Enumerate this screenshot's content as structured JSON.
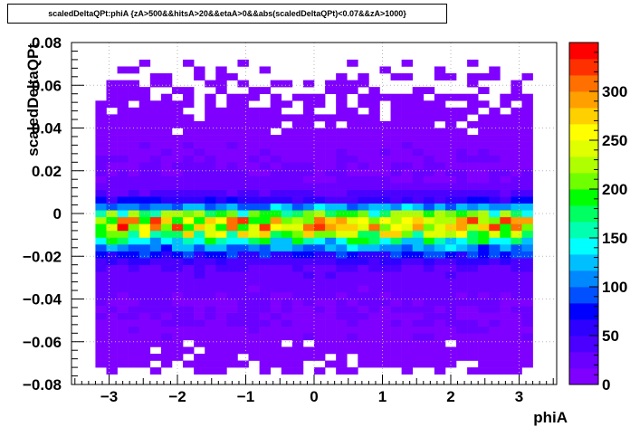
{
  "title": "scaledDeltaQPt:phiA {zA>500&&hitsA>20&&etaA>0&&abs(scaledDeltaQPt)<0.07&&zA>1000}",
  "chart_data": {
    "type": "heatmap",
    "title": "scaledDeltaQPt:phiA {zA>500&&hitsA>20&&etaA>0&&abs(scaledDeltaQPt)<0.07&&zA>1000}",
    "xlabel": "phiA",
    "ylabel": "scaledDeltaQPt",
    "xlim": [
      -3.55,
      3.55
    ],
    "ylim": [
      -0.08,
      0.08
    ],
    "x_ticks": [
      -3,
      -2,
      -1,
      0,
      1,
      2,
      3
    ],
    "x_tick_labels": [
      "−3",
      "−2",
      "−1",
      "0",
      "1",
      "2",
      "3"
    ],
    "y_ticks": [
      -0.08,
      -0.06,
      -0.04,
      -0.02,
      0,
      0.02,
      0.04,
      0.06,
      0.08
    ],
    "y_tick_labels": [
      "−0.08",
      "−0.06",
      "−0.04",
      "−0.02",
      "0",
      "0.02",
      "0.04",
      "0.06",
      "0.08"
    ],
    "grid": true,
    "x_range_filled": [
      -3.2,
      3.2
    ],
    "y_bin_width": 0.0032,
    "row_profile": [
      {
        "y": -0.0736,
        "mean": 10,
        "fill": 0.45
      },
      {
        "y": -0.0704,
        "mean": 10,
        "fill": 0.75
      },
      {
        "y": -0.0672,
        "mean": 10,
        "fill": 0.85
      },
      {
        "y": -0.064,
        "mean": 12,
        "fill": 0.95
      },
      {
        "y": -0.0608,
        "mean": 12,
        "fill": 0.97
      },
      {
        "y": -0.0576,
        "mean": 14,
        "fill": 1.0
      },
      {
        "y": -0.0544,
        "mean": 14,
        "fill": 1.0
      },
      {
        "y": -0.0512,
        "mean": 16,
        "fill": 1.0
      },
      {
        "y": -0.048,
        "mean": 16,
        "fill": 1.0
      },
      {
        "y": -0.0448,
        "mean": 18,
        "fill": 1.0
      },
      {
        "y": -0.0416,
        "mean": 18,
        "fill": 1.0
      },
      {
        "y": -0.0384,
        "mean": 20,
        "fill": 1.0
      },
      {
        "y": -0.0352,
        "mean": 22,
        "fill": 1.0
      },
      {
        "y": -0.032,
        "mean": 24,
        "fill": 1.0
      },
      {
        "y": -0.0288,
        "mean": 28,
        "fill": 1.0
      },
      {
        "y": -0.0256,
        "mean": 34,
        "fill": 1.0
      },
      {
        "y": -0.0224,
        "mean": 48,
        "fill": 1.0
      },
      {
        "y": -0.0192,
        "mean": 78,
        "fill": 1.0
      },
      {
        "y": -0.016,
        "mean": 110,
        "fill": 1.0
      },
      {
        "y": -0.0128,
        "mean": 160,
        "fill": 1.0
      },
      {
        "y": -0.0096,
        "mean": 215,
        "fill": 1.0
      },
      {
        "y": -0.0064,
        "mean": 265,
        "fill": 1.0
      },
      {
        "y": -0.0032,
        "mean": 255,
        "fill": 1.0
      },
      {
        "y": 0.0,
        "mean": 185,
        "fill": 1.0
      },
      {
        "y": 0.0032,
        "mean": 110,
        "fill": 1.0
      },
      {
        "y": 0.0064,
        "mean": 62,
        "fill": 1.0
      },
      {
        "y": 0.0096,
        "mean": 36,
        "fill": 1.0
      },
      {
        "y": 0.0128,
        "mean": 24,
        "fill": 1.0
      },
      {
        "y": 0.016,
        "mean": 20,
        "fill": 1.0
      },
      {
        "y": 0.0192,
        "mean": 18,
        "fill": 1.0
      },
      {
        "y": 0.0224,
        "mean": 16,
        "fill": 1.0
      },
      {
        "y": 0.0256,
        "mean": 16,
        "fill": 1.0
      },
      {
        "y": 0.0288,
        "mean": 14,
        "fill": 1.0
      },
      {
        "y": 0.032,
        "mean": 14,
        "fill": 1.0
      },
      {
        "y": 0.0352,
        "mean": 12,
        "fill": 1.0
      },
      {
        "y": 0.0384,
        "mean": 12,
        "fill": 0.97
      },
      {
        "y": 0.0416,
        "mean": 10,
        "fill": 0.85
      },
      {
        "y": 0.0448,
        "mean": 10,
        "fill": 0.8
      },
      {
        "y": 0.048,
        "mean": 10,
        "fill": 0.75
      },
      {
        "y": 0.0512,
        "mean": 8,
        "fill": 0.7
      },
      {
        "y": 0.0544,
        "mean": 8,
        "fill": 0.6
      },
      {
        "y": 0.0576,
        "mean": 8,
        "fill": 0.5
      },
      {
        "y": 0.0608,
        "mean": 6,
        "fill": 0.45
      },
      {
        "y": 0.064,
        "mean": 6,
        "fill": 0.3
      },
      {
        "y": 0.0672,
        "mean": 6,
        "fill": 0.2
      },
      {
        "y": 0.0704,
        "mean": 4,
        "fill": 0.1
      }
    ],
    "colorbar": {
      "min": 0,
      "max": 350,
      "ticks": [
        0,
        50,
        100,
        150,
        200,
        250,
        300
      ],
      "tick_labels": [
        "0",
        "50",
        "100",
        "150",
        "200",
        "250",
        "300"
      ],
      "palette": [
        "#8000ff",
        "#6a00ff",
        "#4b00ff",
        "#2e00ff",
        "#0000ff",
        "#0050ff",
        "#0088ff",
        "#00bfff",
        "#00ffff",
        "#00ffb0",
        "#00ff60",
        "#00ff00",
        "#70ff00",
        "#b0ff00",
        "#e0ff00",
        "#ffff00",
        "#ffd000",
        "#ffa000",
        "#ff7000",
        "#ff3000",
        "#ff0000"
      ]
    }
  }
}
